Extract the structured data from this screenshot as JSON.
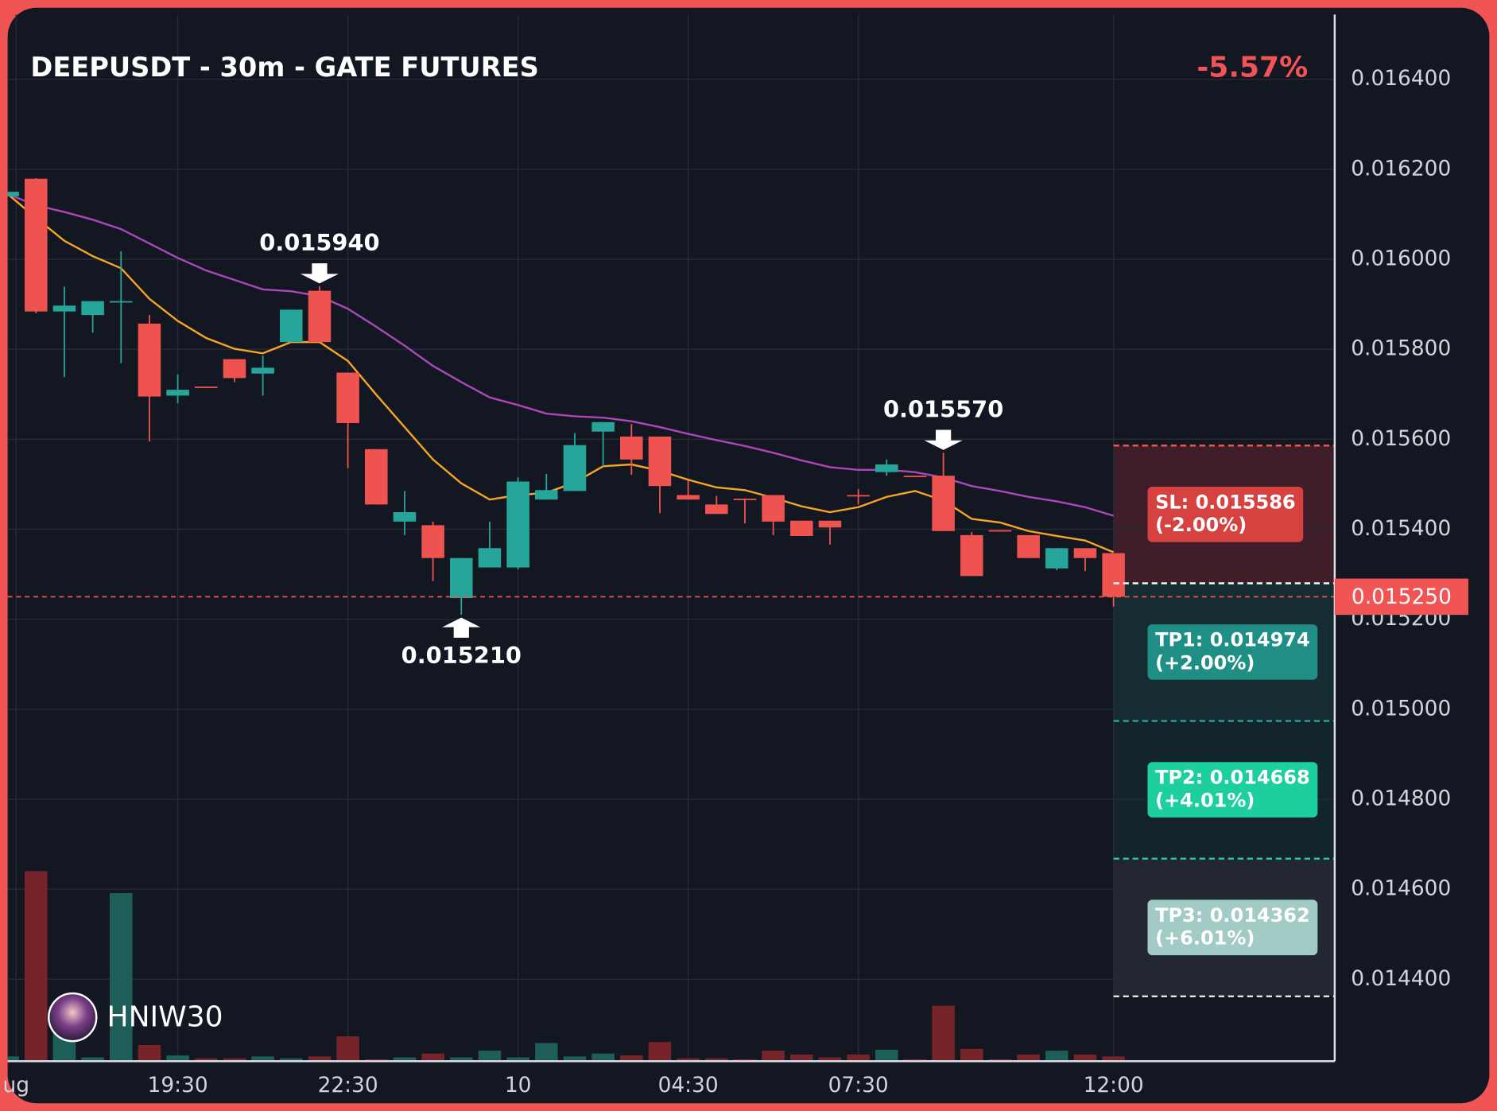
{
  "chart_data": {
    "type": "candlestick",
    "title": "DEEPUSDT - 30m - GATE FUTURES",
    "change": "-5.57%",
    "watermark": "HNIW30",
    "xlim": [
      0,
      46.8
    ],
    "ylim": [
      0.01422,
      0.016544
    ],
    "yticks": [
      {
        "value": 0.0144,
        "label": "0.014400"
      },
      {
        "value": 0.0146,
        "label": "0.014600"
      },
      {
        "value": 0.0148,
        "label": "0.014800"
      },
      {
        "value": 0.015,
        "label": "0.015000"
      },
      {
        "value": 0.0152,
        "label": "0.015200"
      },
      {
        "value": 0.0154,
        "label": "0.015400"
      },
      {
        "value": 0.0156,
        "label": "0.015600"
      },
      {
        "value": 0.0158,
        "label": "0.015800"
      },
      {
        "value": 0.016,
        "label": "0.016000"
      },
      {
        "value": 0.0162,
        "label": "0.016200"
      },
      {
        "value": 0.0164,
        "label": "0.016400"
      }
    ],
    "xticks": [
      {
        "value": 0.3,
        "label": "ug"
      },
      {
        "value": 6,
        "label": "19:30"
      },
      {
        "value": 12,
        "label": "22:30"
      },
      {
        "value": 18,
        "label": "10"
      },
      {
        "value": 24,
        "label": "04:30"
      },
      {
        "value": 30,
        "label": "07:30"
      },
      {
        "value": 39,
        "label": "12:00"
      }
    ],
    "grid": true,
    "up_color": "#26a69a",
    "down_color": "#ef5350",
    "candles": [
      {
        "o": 0.01614,
        "h": 0.01615,
        "l": 0.01614,
        "c": 0.01615
      },
      {
        "o": 0.016179,
        "h": 0.01618,
        "l": 0.01588,
        "c": 0.015884
      },
      {
        "o": 0.015884,
        "h": 0.015939,
        "l": 0.015738,
        "c": 0.015897
      },
      {
        "o": 0.015876,
        "h": 0.015907,
        "l": 0.015837,
        "c": 0.015907
      },
      {
        "o": 0.015905,
        "h": 0.016018,
        "l": 0.015769,
        "c": 0.015907
      },
      {
        "o": 0.015857,
        "h": 0.015876,
        "l": 0.015595,
        "c": 0.015695
      },
      {
        "o": 0.015697,
        "h": 0.015744,
        "l": 0.01568,
        "c": 0.01571
      },
      {
        "o": 0.015717,
        "h": 0.015717,
        "l": 0.015715,
        "c": 0.015715
      },
      {
        "o": 0.015778,
        "h": 0.015778,
        "l": 0.015727,
        "c": 0.015736
      },
      {
        "o": 0.015746,
        "h": 0.015786,
        "l": 0.015697,
        "c": 0.015759
      },
      {
        "o": 0.015816,
        "h": 0.015888,
        "l": 0.015816,
        "c": 0.015888
      },
      {
        "o": 0.01593,
        "h": 0.01594,
        "l": 0.015816,
        "c": 0.015816
      },
      {
        "o": 0.015748,
        "h": 0.015748,
        "l": 0.015536,
        "c": 0.015636
      },
      {
        "o": 0.015578,
        "h": 0.015578,
        "l": 0.015455,
        "c": 0.015455
      },
      {
        "o": 0.015417,
        "h": 0.015485,
        "l": 0.015387,
        "c": 0.015438
      },
      {
        "o": 0.015409,
        "h": 0.015417,
        "l": 0.015285,
        "c": 0.015336
      },
      {
        "o": 0.015247,
        "h": 0.015336,
        "l": 0.01521,
        "c": 0.015336
      },
      {
        "o": 0.015315,
        "h": 0.015417,
        "l": 0.015315,
        "c": 0.015358
      },
      {
        "o": 0.015315,
        "h": 0.015515,
        "l": 0.015311,
        "c": 0.015506
      },
      {
        "o": 0.015466,
        "h": 0.015523,
        "l": 0.015466,
        "c": 0.015487
      },
      {
        "o": 0.015485,
        "h": 0.015614,
        "l": 0.015485,
        "c": 0.015587
      },
      {
        "o": 0.015617,
        "h": 0.015638,
        "l": 0.01554,
        "c": 0.015638
      },
      {
        "o": 0.015606,
        "h": 0.015634,
        "l": 0.015521,
        "c": 0.015555
      },
      {
        "o": 0.015606,
        "h": 0.015606,
        "l": 0.015436,
        "c": 0.015496
      },
      {
        "o": 0.015476,
        "h": 0.015508,
        "l": 0.015466,
        "c": 0.015466
      },
      {
        "o": 0.015455,
        "h": 0.015474,
        "l": 0.015434,
        "c": 0.015434
      },
      {
        "o": 0.015468,
        "h": 0.015468,
        "l": 0.015413,
        "c": 0.015466
      },
      {
        "o": 0.015476,
        "h": 0.015476,
        "l": 0.015387,
        "c": 0.015417
      },
      {
        "o": 0.015419,
        "h": 0.015419,
        "l": 0.015385,
        "c": 0.015385
      },
      {
        "o": 0.015419,
        "h": 0.015419,
        "l": 0.015366,
        "c": 0.015404
      },
      {
        "o": 0.015476,
        "h": 0.015489,
        "l": 0.015455,
        "c": 0.015474
      },
      {
        "o": 0.015527,
        "h": 0.015555,
        "l": 0.015519,
        "c": 0.015544
      },
      {
        "o": 0.015519,
        "h": 0.015519,
        "l": 0.015517,
        "c": 0.015517
      },
      {
        "o": 0.015519,
        "h": 0.01557,
        "l": 0.015396,
        "c": 0.015396
      },
      {
        "o": 0.015387,
        "h": 0.015394,
        "l": 0.015296,
        "c": 0.015296
      },
      {
        "o": 0.015398,
        "h": 0.015398,
        "l": 0.015396,
        "c": 0.015396
      },
      {
        "o": 0.015387,
        "h": 0.015387,
        "l": 0.015336,
        "c": 0.015336
      },
      {
        "o": 0.015313,
        "h": 0.015358,
        "l": 0.015309,
        "c": 0.015358
      },
      {
        "o": 0.015358,
        "h": 0.015358,
        "l": 0.015307,
        "c": 0.015336
      },
      {
        "o": 0.015347,
        "h": 0.015347,
        "l": 0.015228,
        "c": 0.01525
      }
    ],
    "volume": [
      4,
      198,
      30,
      3,
      175,
      16,
      5,
      2,
      2,
      4,
      2,
      4,
      25,
      1,
      3,
      7,
      3,
      10,
      3,
      18,
      4,
      7,
      5,
      19,
      2,
      2,
      1,
      10,
      6,
      3,
      6,
      11,
      1,
      57,
      12,
      1,
      6,
      10,
      6,
      4
    ],
    "volume_up_color": "#1e5e58",
    "volume_down_color": "#76242a",
    "ema": [
      {
        "color": "#f5a623",
        "values": [
          0.016145,
          0.016092,
          0.016041,
          0.016007,
          0.01598,
          0.015912,
          0.015863,
          0.015825,
          0.015801,
          0.015791,
          0.015816,
          0.015816,
          0.015774,
          0.015699,
          0.015627,
          0.015555,
          0.015502,
          0.015466,
          0.015476,
          0.015481,
          0.015504,
          0.01554,
          0.015544,
          0.01553,
          0.01551,
          0.015493,
          0.015487,
          0.01547,
          0.015451,
          0.015438,
          0.015449,
          0.015472,
          0.015485,
          0.015464,
          0.015423,
          0.015415,
          0.015396,
          0.015385,
          0.015375,
          0.015349
        ]
      },
      {
        "color": "#ab47bc",
        "values": [
          0.016145,
          0.01612,
          0.016105,
          0.016088,
          0.016067,
          0.016035,
          0.016003,
          0.015975,
          0.015954,
          0.015933,
          0.015929,
          0.015918,
          0.01589,
          0.01585,
          0.015808,
          0.015763,
          0.015727,
          0.015693,
          0.015676,
          0.015657,
          0.015651,
          0.015648,
          0.01564,
          0.015627,
          0.015612,
          0.015598,
          0.015585,
          0.01557,
          0.015553,
          0.015538,
          0.015532,
          0.015532,
          0.015527,
          0.015515,
          0.015496,
          0.015485,
          0.015472,
          0.015462,
          0.015449,
          0.01543
        ]
      }
    ],
    "annotations": [
      {
        "text": "0.015940",
        "index": 11,
        "value": 0.01594,
        "dir": "down"
      },
      {
        "text": "0.015210",
        "index": 16,
        "value": 0.01521,
        "dir": "up"
      },
      {
        "text": "0.015570",
        "index": 33,
        "value": 0.01557,
        "dir": "down"
      }
    ],
    "entry": {
      "value": 0.01528,
      "color": "#ffffff"
    },
    "levels": [
      {
        "label": "SL: 0.015586",
        "pct": "(-2.00%)",
        "value": 0.015586,
        "line": "#f05454",
        "box": "#d6423f",
        "zone": "rgba(242,54,69,0.2)"
      },
      {
        "label": "TP1: 0.014974",
        "pct": "(+2.00%)",
        "value": 0.014974,
        "line": "#26a69a",
        "box": "#1f8f85",
        "zone": "rgba(30,130,118,0.2)"
      },
      {
        "label": "TP2: 0.014668",
        "pct": "(+4.01%)",
        "value": 0.014668,
        "line": "#2cc9a5",
        "box": "#1ccf9c",
        "zone": "rgba(30,120,110,0.14)"
      },
      {
        "label": "TP3: 0.014362",
        "pct": "(+6.01%)",
        "value": 0.014362,
        "line": "#e6e6e6",
        "box": "#a3cbc6",
        "zone": "rgba(130,140,150,0.14)"
      }
    ],
    "last_price": {
      "value": 0.01525,
      "label": "0.015250",
      "color": "#f05454"
    }
  }
}
